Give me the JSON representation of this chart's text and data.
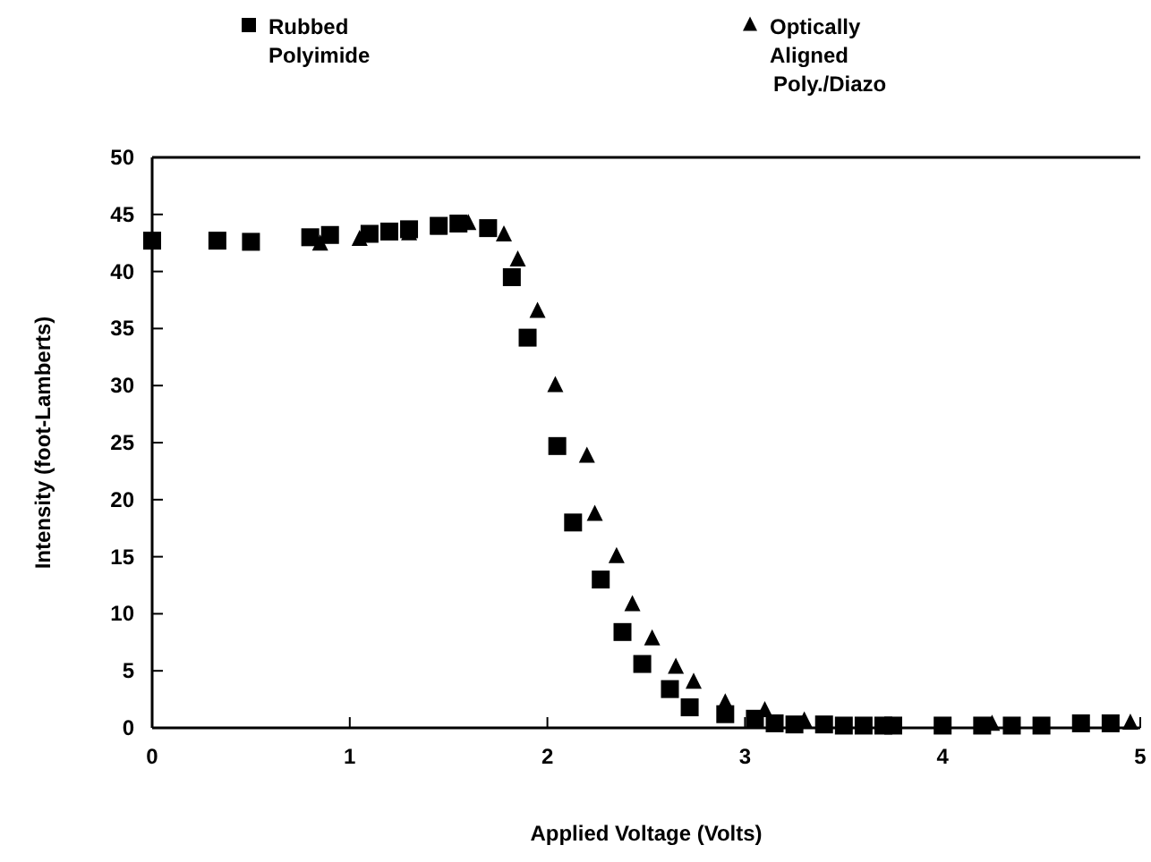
{
  "chart_data": {
    "type": "scatter",
    "xlabel": "Applied Voltage (Volts)",
    "ylabel": "Intensity (foot-Lamberts)",
    "xlim": [
      0,
      5
    ],
    "ylim": [
      0,
      50
    ],
    "xticks": [
      0,
      1,
      2,
      3,
      4,
      5
    ],
    "yticks": [
      0,
      5,
      10,
      15,
      20,
      25,
      30,
      35,
      40,
      45,
      50
    ],
    "legend": "top",
    "grid": false,
    "series": [
      {
        "name": "Rubbed Polyimide",
        "color": "#000000",
        "marker": "square",
        "x": [
          0,
          0.33,
          0.5,
          0.8,
          0.9,
          1.1,
          1.2,
          1.3,
          1.45,
          1.55,
          1.7,
          1.82,
          1.9,
          2.05,
          2.13,
          2.27,
          2.38,
          2.48,
          2.62,
          2.72,
          2.9,
          3.05,
          3.15,
          3.25,
          3.4,
          3.5,
          3.6,
          3.7,
          3.75,
          4,
          4.2,
          4.35,
          4.5,
          4.7,
          4.85
        ],
        "values": [
          42.7,
          42.7,
          42.6,
          43,
          43.2,
          43.3,
          43.5,
          43.7,
          44,
          44.2,
          43.8,
          39.5,
          34.2,
          24.7,
          18,
          13,
          8.4,
          5.6,
          3.4,
          1.8,
          1.2,
          0.8,
          0.4,
          0.3,
          0.3,
          0.2,
          0.2,
          0.2,
          0.2,
          0.2,
          0.2,
          0.2,
          0.2,
          0.4,
          0.4
        ]
      },
      {
        "name": "Optically Aligned Poly./Diazo",
        "color": "#000000",
        "marker": "triangle",
        "x": [
          0.85,
          1.05,
          1.3,
          1.45,
          1.6,
          1.78,
          1.85,
          1.95,
          2.04,
          2.2,
          2.24,
          2.35,
          2.43,
          2.53,
          2.65,
          2.74,
          2.9,
          3.1,
          3.3,
          4.25,
          4.95
        ],
        "values": [
          42.4,
          42.8,
          43.3,
          43.8,
          44.2,
          43.2,
          41,
          36.5,
          30,
          23.8,
          18.7,
          15,
          10.8,
          7.8,
          5.3,
          4,
          2.2,
          1.5,
          0.6,
          0.3,
          0.4
        ]
      }
    ]
  }
}
